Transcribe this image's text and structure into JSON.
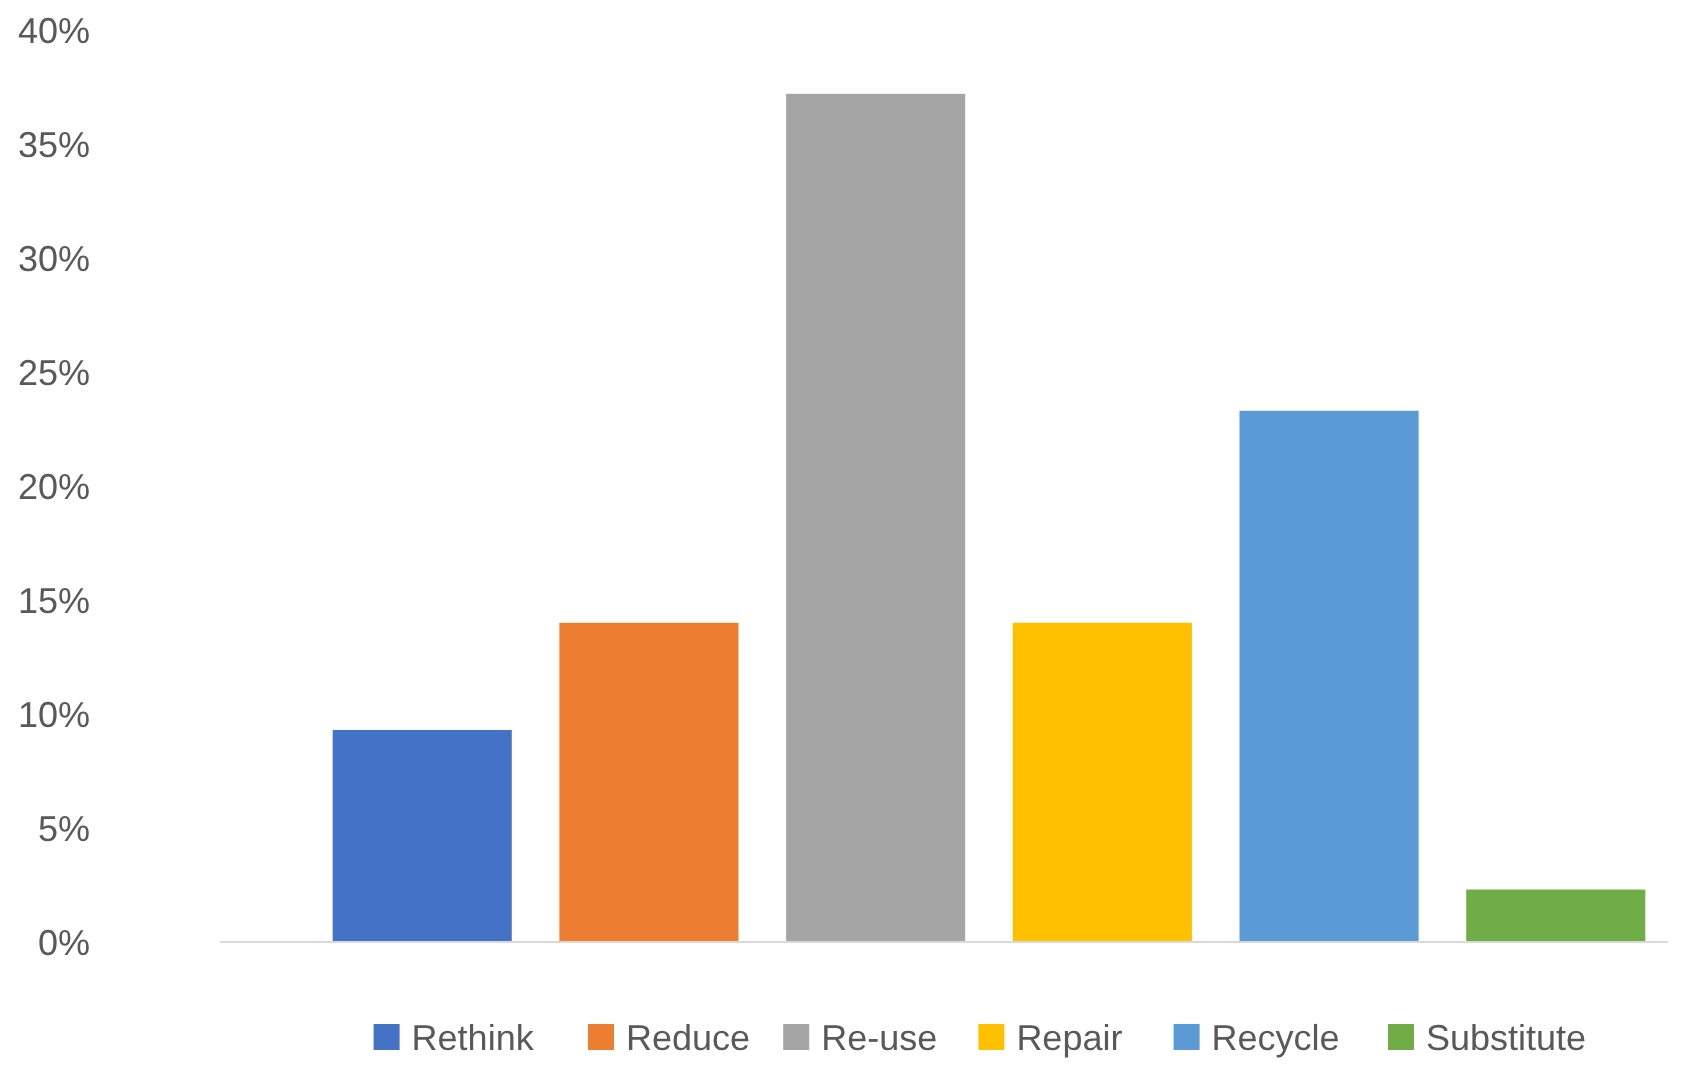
{
  "chart_data": {
    "type": "bar",
    "categories": [
      null,
      null,
      null,
      null,
      null,
      null
    ],
    "series": [
      {
        "name": "Rethink",
        "color": "#4472c4",
        "values": [
          9.3,
          null,
          null,
          null,
          null,
          null
        ]
      },
      {
        "name": "Reduce",
        "color": "#ed7d31",
        "values": [
          null,
          14,
          null,
          null,
          null,
          null
        ]
      },
      {
        "name": "Re-use",
        "color": "#a5a5a5",
        "values": [
          null,
          null,
          37.2,
          null,
          null,
          null
        ]
      },
      {
        "name": "Repair",
        "color": "#ffc000",
        "values": [
          null,
          null,
          null,
          14,
          null,
          null
        ]
      },
      {
        "name": "Recycle",
        "color": "#5b9bd5",
        "values": [
          null,
          null,
          null,
          null,
          23.3,
          null
        ]
      },
      {
        "name": "Substitute",
        "color": "#70ad47",
        "values": [
          null,
          null,
          null,
          null,
          null,
          2.3
        ]
      }
    ],
    "stacked": true,
    "ylim": [
      0,
      40
    ],
    "yticks": [
      {
        "value": 0,
        "label": "0%"
      },
      {
        "value": 5,
        "label": "5%"
      },
      {
        "value": 10,
        "label": "10%"
      },
      {
        "value": 15,
        "label": "15%"
      },
      {
        "value": 20,
        "label": "20%"
      },
      {
        "value": 25,
        "label": "25%"
      },
      {
        "value": 30,
        "label": "30%"
      },
      {
        "value": 35,
        "label": "35%"
      },
      {
        "value": 40,
        "label": "40%"
      }
    ],
    "legend": "bottom",
    "tick_labels": "y"
  }
}
